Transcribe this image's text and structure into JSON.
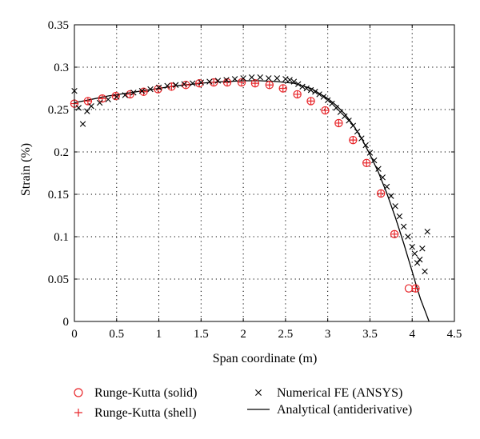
{
  "chart_data": {
    "type": "scatter",
    "xlabel": "Span coordinate (m)",
    "ylabel": "Strain (%)",
    "xlim": [
      0,
      4.5
    ],
    "ylim": [
      0,
      0.35
    ],
    "xticks": [
      "0",
      "0.5",
      "1",
      "1.5",
      "2",
      "2.5",
      "3",
      "3.5",
      "4",
      "4.5"
    ],
    "yticks": [
      "0",
      "0.05",
      "0.1",
      "0.15",
      "0.2",
      "0.25",
      "0.3",
      "0.35"
    ],
    "grid": true,
    "legend_position": "bottom, outside plot",
    "series": [
      {
        "name": "Runge-Kutta (solid)",
        "marker": "circle",
        "color": "#e8262a",
        "x": [
          0.0,
          0.16,
          0.33,
          0.49,
          0.66,
          0.82,
          0.99,
          1.15,
          1.32,
          1.48,
          1.65,
          1.81,
          1.98,
          2.14,
          2.31,
          2.47,
          2.64,
          2.8,
          2.97,
          3.13,
          3.3,
          3.46,
          3.63,
          3.79,
          3.96,
          4.04
        ],
        "y": [
          0.257,
          0.26,
          0.263,
          0.266,
          0.268,
          0.271,
          0.274,
          0.277,
          0.279,
          0.281,
          0.282,
          0.282,
          0.282,
          0.281,
          0.279,
          0.275,
          0.268,
          0.26,
          0.249,
          0.234,
          0.214,
          0.187,
          0.151,
          0.103,
          0.039,
          0.039
        ]
      },
      {
        "name": "Runge-Kutta (shell)",
        "marker": "plus",
        "color": "#e8262a",
        "x": [
          0.0,
          0.16,
          0.33,
          0.49,
          0.66,
          0.82,
          0.99,
          1.15,
          1.32,
          1.48,
          1.65,
          1.81,
          1.98,
          2.14,
          2.31,
          2.47,
          2.64,
          2.8,
          2.97,
          3.13,
          3.3,
          3.46,
          3.63,
          3.79,
          4.04
        ],
        "y": [
          0.257,
          0.26,
          0.263,
          0.266,
          0.268,
          0.271,
          0.274,
          0.277,
          0.279,
          0.281,
          0.282,
          0.282,
          0.282,
          0.281,
          0.279,
          0.275,
          0.268,
          0.26,
          0.249,
          0.234,
          0.214,
          0.187,
          0.151,
          0.103,
          0.039
        ]
      },
      {
        "name": "Numerical FE (ANSYS)",
        "marker": "x",
        "color": "#000000",
        "x": [
          0.0,
          0.05,
          0.1,
          0.15,
          0.2,
          0.3,
          0.4,
          0.5,
          0.6,
          0.7,
          0.8,
          0.9,
          1.0,
          1.1,
          1.2,
          1.3,
          1.4,
          1.5,
          1.6,
          1.7,
          1.8,
          1.9,
          2.0,
          2.1,
          2.2,
          2.3,
          2.4,
          2.5,
          2.55,
          2.6,
          2.65,
          2.7,
          2.75,
          2.8,
          2.85,
          2.9,
          2.95,
          3.0,
          3.05,
          3.1,
          3.15,
          3.2,
          3.25,
          3.3,
          3.35,
          3.4,
          3.45,
          3.5,
          3.55,
          3.6,
          3.65,
          3.7,
          3.75,
          3.8,
          3.85,
          3.9,
          3.95,
          4.0,
          4.03,
          4.06,
          4.09,
          4.12,
          4.15,
          4.18
        ],
        "y": [
          0.272,
          0.252,
          0.233,
          0.248,
          0.254,
          0.258,
          0.262,
          0.265,
          0.267,
          0.27,
          0.272,
          0.274,
          0.276,
          0.278,
          0.279,
          0.28,
          0.281,
          0.282,
          0.283,
          0.284,
          0.285,
          0.286,
          0.287,
          0.288,
          0.288,
          0.287,
          0.287,
          0.286,
          0.285,
          0.283,
          0.28,
          0.277,
          0.275,
          0.273,
          0.271,
          0.268,
          0.265,
          0.261,
          0.257,
          0.252,
          0.247,
          0.242,
          0.237,
          0.231,
          0.224,
          0.216,
          0.208,
          0.199,
          0.19,
          0.18,
          0.17,
          0.159,
          0.148,
          0.136,
          0.124,
          0.112,
          0.1,
          0.088,
          0.08,
          0.069,
          0.073,
          0.086,
          0.059,
          0.106
        ]
      },
      {
        "name": "Analytical (antiderivative)",
        "marker": "line",
        "color": "#000000",
        "x": [
          0.0,
          0.2,
          0.4,
          0.6,
          0.8,
          1.0,
          1.2,
          1.4,
          1.6,
          1.8,
          2.0,
          2.2,
          2.4,
          2.6,
          2.8,
          3.0,
          3.1,
          3.2,
          3.3,
          3.4,
          3.5,
          3.6,
          3.7,
          3.8,
          3.9,
          4.0,
          4.05,
          4.1,
          4.15,
          4.2
        ],
        "y": [
          0.258,
          0.262,
          0.266,
          0.269,
          0.272,
          0.275,
          0.278,
          0.28,
          0.282,
          0.283,
          0.284,
          0.284,
          0.283,
          0.281,
          0.275,
          0.263,
          0.255,
          0.245,
          0.232,
          0.216,
          0.197,
          0.176,
          0.151,
          0.123,
          0.092,
          0.059,
          0.042,
          0.026,
          0.013,
          0.0
        ]
      }
    ]
  }
}
